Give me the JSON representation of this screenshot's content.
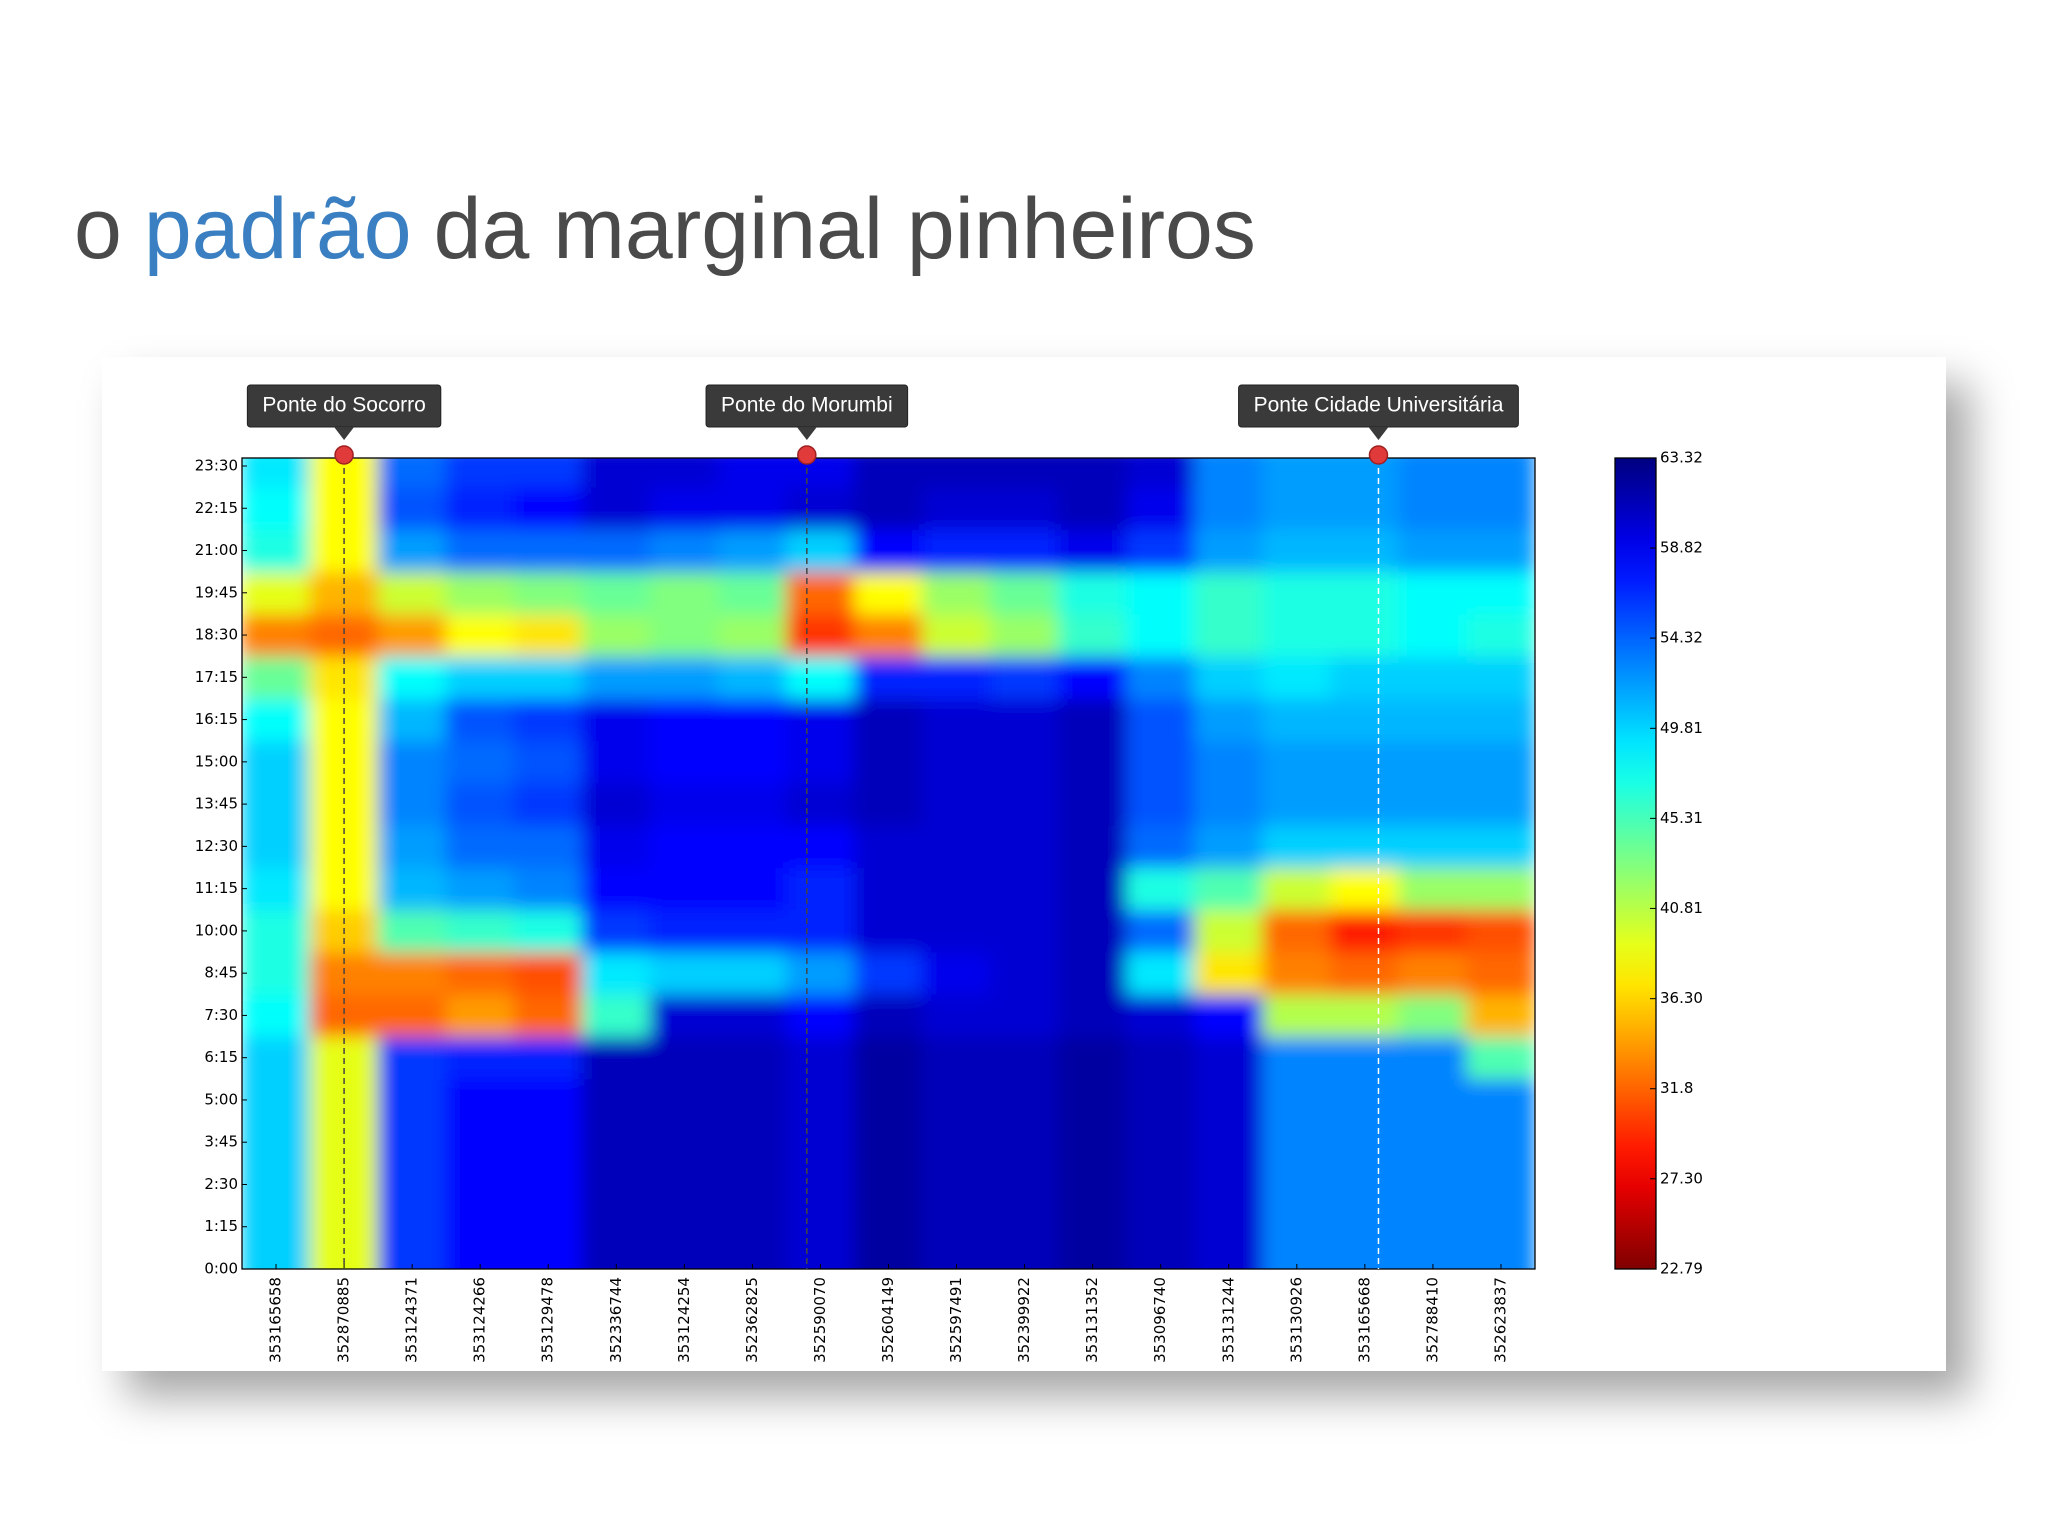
{
  "header": {
    "title_parts": [
      "o",
      "padrão",
      "da marginal pinheiros"
    ]
  },
  "chart_data": {
    "type": "heatmap",
    "x_categories": [
      "353165658",
      "352870885",
      "353124371",
      "353124266",
      "353129478",
      "352336744",
      "353124254",
      "352362825",
      "352590070",
      "352604149",
      "352597491",
      "352399922",
      "353131352",
      "353096740",
      "353131244",
      "353130926",
      "353165668",
      "352788410",
      "352623837"
    ],
    "y_categories": [
      "0:00",
      "1:15",
      "2:30",
      "3:45",
      "5:00",
      "6:15",
      "7:30",
      "8:45",
      "10:00",
      "11:15",
      "12:30",
      "13:45",
      "15:00",
      "16:15",
      "17:15",
      "18:30",
      "19:45",
      "21:00",
      "22:15",
      "23:30"
    ],
    "values": [
      [
        50,
        39,
        56,
        58,
        58,
        61,
        61,
        61,
        60,
        62,
        61,
        61,
        62,
        61,
        60,
        53,
        53,
        53,
        53
      ],
      [
        50,
        39,
        56,
        58,
        58,
        61,
        61,
        61,
        60,
        62,
        61,
        61,
        62,
        61,
        60,
        53,
        53,
        53,
        53
      ],
      [
        50,
        39,
        56,
        58,
        58,
        61,
        61,
        61,
        60,
        62,
        61,
        61,
        62,
        61,
        60,
        53,
        53,
        53,
        53
      ],
      [
        50,
        39,
        56,
        58,
        58,
        61,
        61,
        61,
        60,
        62,
        61,
        61,
        62,
        61,
        60,
        53,
        53,
        53,
        53
      ],
      [
        50,
        39,
        56,
        58,
        58,
        61,
        61,
        61,
        60,
        62,
        61,
        61,
        62,
        61,
        60,
        53,
        53,
        53,
        53
      ],
      [
        50,
        39,
        56,
        57,
        57,
        61,
        61,
        61,
        60,
        62,
        61,
        61,
        62,
        61,
        60,
        53,
        53,
        53,
        45
      ],
      [
        48,
        32,
        32,
        34,
        32,
        46,
        60,
        60,
        58,
        61,
        60,
        60,
        61,
        60,
        58,
        41,
        41,
        43,
        35
      ],
      [
        47,
        33,
        33,
        32,
        31,
        49,
        50,
        50,
        52,
        56,
        59,
        60,
        61,
        49,
        37,
        33,
        32,
        33,
        32
      ],
      [
        47,
        36,
        45,
        46,
        47,
        56,
        57,
        57,
        57,
        60,
        60,
        60,
        61,
        54,
        40,
        32,
        29,
        30,
        31
      ],
      [
        49,
        38,
        51,
        52,
        53,
        58,
        58,
        58,
        57,
        60,
        60,
        60,
        61,
        47,
        45,
        40,
        38,
        42,
        42
      ],
      [
        50,
        38,
        52,
        54,
        54,
        59,
        58,
        58,
        58,
        60,
        60,
        60,
        61,
        54,
        52,
        50,
        50,
        50,
        50
      ],
      [
        50,
        38,
        53,
        55,
        56,
        60,
        59,
        59,
        60,
        61,
        60,
        60,
        61,
        55,
        53,
        52,
        52,
        52,
        52
      ],
      [
        50,
        38,
        53,
        54,
        55,
        59,
        58,
        58,
        59,
        61,
        60,
        60,
        61,
        55,
        53,
        52,
        52,
        52,
        52
      ],
      [
        48,
        38,
        51,
        55,
        56,
        59,
        58,
        58,
        59,
        61,
        60,
        60,
        61,
        55,
        52,
        51,
        51,
        51,
        51
      ],
      [
        44,
        37,
        48,
        50,
        50,
        52,
        52,
        51,
        48,
        57,
        57,
        56,
        58,
        53,
        50,
        49,
        50,
        50,
        50
      ],
      [
        33,
        32,
        34,
        38,
        37,
        42,
        43,
        42,
        30,
        33,
        40,
        42,
        46,
        48,
        46,
        47,
        47,
        48,
        47
      ],
      [
        39,
        35,
        40,
        42,
        43,
        44,
        43,
        44,
        32,
        38,
        42,
        44,
        47,
        48,
        46,
        47,
        47,
        48,
        48
      ],
      [
        47,
        38,
        52,
        54,
        54,
        54,
        53,
        52,
        50,
        58,
        57,
        57,
        59,
        56,
        52,
        51,
        51,
        52,
        52
      ],
      [
        48,
        38,
        55,
        57,
        58,
        60,
        59,
        59,
        60,
        61,
        60,
        60,
        61,
        59,
        53,
        52,
        52,
        53,
        53
      ],
      [
        49,
        38,
        54,
        56,
        56,
        60,
        60,
        59,
        59,
        61,
        61,
        61,
        61,
        60,
        53,
        52,
        52,
        53,
        53
      ]
    ],
    "colormap": "jet_r",
    "clim": [
      22.79,
      63.32
    ],
    "colorbar_ticks": [
      22.79,
      {
        "value": 27.3,
        "label": "27.30"
      },
      31.8,
      {
        "value": 36.3,
        "label": "36.30"
      },
      40.81,
      45.31,
      49.81,
      54.32,
      58.82,
      63.32
    ],
    "annotations": [
      {
        "text": "Ponte do Socorro",
        "x": 1
      },
      {
        "text": "Ponte do Morumbi",
        "x": 7.8
      },
      {
        "text": "Ponte Cidade Universitária",
        "x": 16.2
      }
    ]
  }
}
